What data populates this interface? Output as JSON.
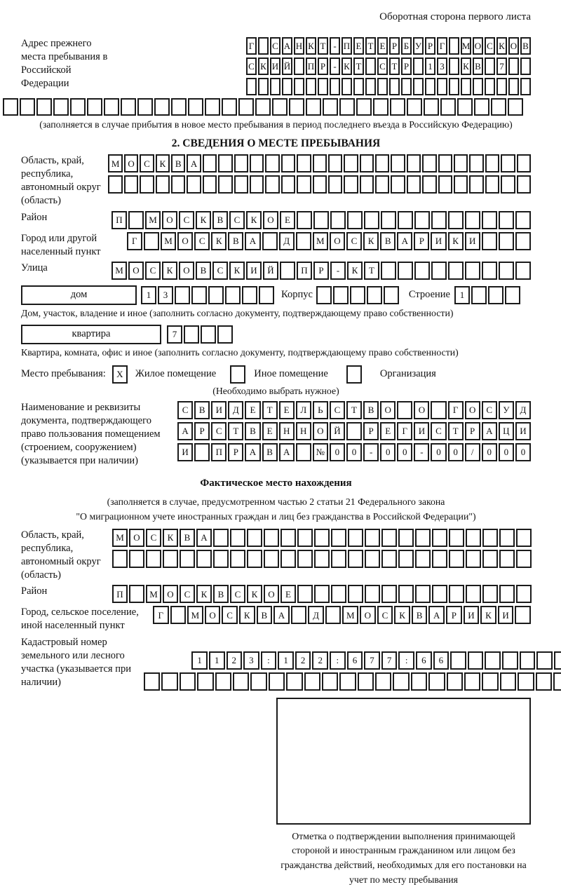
{
  "header": {
    "note": "Оборотная сторона первого листа"
  },
  "prev_address": {
    "label": "Адрес прежнего места пребывания в Российской Федерации",
    "row1": {
      "len": 24,
      "text": "Г САНКТ-ПЕТЕРБУРГ МОСКОВ"
    },
    "row2": {
      "len": 24,
      "text": "СКИЙ ПР-КТ СТР 13 КВ 7"
    },
    "row3": {
      "len": 24,
      "text": ""
    },
    "row4": {
      "len": 31,
      "text": ""
    },
    "note": "(заполняется в случае прибытия в новое место пребывания в период последнего въезда в Российскую Федерацию)"
  },
  "section2": {
    "title": "2. СВЕДЕНИЯ О МЕСТЕ ПРЕБЫВАНИЯ",
    "oblast": {
      "label": "Область, край, республика, автономный округ (область)",
      "row1": {
        "len": 27,
        "text": "МОСКВА"
      },
      "row2": {
        "len": 27,
        "text": ""
      }
    },
    "rayon": {
      "label": "Район",
      "row": {
        "len": 25,
        "text": "П МОСКВСКОЕ"
      }
    },
    "gorod": {
      "label": "Город или другой населенный пункт",
      "row": {
        "len": 24,
        "text": "Г МОСКВА Д МОСКВАРИКИ"
      }
    },
    "ulitsa": {
      "label": "Улица",
      "row": {
        "len": 25,
        "text": "МОСКОВСКИЙ ПР-КТ"
      }
    },
    "dom": {
      "box_label": "дом",
      "row": {
        "len": 8,
        "text": "13"
      },
      "korpus_label": "Корпус",
      "korpus_row": {
        "len": 5,
        "text": ""
      },
      "stroenie_label": "Строение",
      "stroenie_row": {
        "len": 4,
        "text": "1"
      }
    },
    "dom_note": "Дом, участок, владение и иное (заполнить согласно документу, подтверждающему право собственности)",
    "kvartira": {
      "box_label": "квартира",
      "row": {
        "len": 4,
        "text": "7"
      }
    },
    "kvartira_note": "Квартира, комната, офис и иное (заполнить согласно документу, подтверждающему право собственности)",
    "mesto": {
      "label": "Место пребывания:",
      "zhiloe_cell": {
        "len": 1,
        "text": "X"
      },
      "zhiloe_label": "Жилое помещение",
      "inoe_cell": {
        "len": 1,
        "text": ""
      },
      "inoe_label": "Иное помещение",
      "org_cell": {
        "len": 1,
        "text": ""
      },
      "org_label": "Организация",
      "note": "(Необходимо выбрать нужное)"
    },
    "document": {
      "label": "Наименование и реквизиты документа, подтверждающего право пользования помещением (строением, сооружением) (указывается при наличии)",
      "row1": {
        "len": 21,
        "text": "СВИДЕТЕЛЬСТВО О ГОСУД"
      },
      "row2": {
        "len": 21,
        "text": "АРСТВЕННОЙ РЕГИСТРАЦИ"
      },
      "row3": {
        "len": 21,
        "text": "И ПРАВА №00-00-00/000"
      }
    }
  },
  "fact": {
    "title": "Фактическое место нахождения",
    "note1": "(заполняется в случае, предусмотренном частью 2 статьи 21 Федерального закона",
    "note2": "\"О миграционном учете иностранных граждан и лиц без гражданства в Российской Федерации\")",
    "oblast": {
      "label": "Область, край, республика, автономный округ (область)",
      "row1": {
        "len": 25,
        "text": "МОСКВА"
      },
      "row2": {
        "len": 25,
        "text": ""
      }
    },
    "rayon": {
      "label": "Район",
      "row": {
        "len": 25,
        "text": "П МОСКВСКОЕ"
      }
    },
    "gorod": {
      "label": "Город, сельское поселение, иной населенный пункт",
      "row": {
        "len": 22,
        "text": "Г МОСКВА Д МОСКВАРИКИ"
      }
    },
    "kadastr": {
      "label": "Кадастровый номер земельного или лесного участка (указывается при наличии)",
      "row1": {
        "len": 22,
        "text": "1123:122:677:66"
      },
      "row2": {
        "len": 24,
        "text": ""
      }
    }
  },
  "stamp": {
    "caption": "Отметка о подтверждении выполнения принимающей стороной и иностранным гражданином или лицом без гражданства действий, необходимых для его постановки на учет по месту пребывания"
  }
}
